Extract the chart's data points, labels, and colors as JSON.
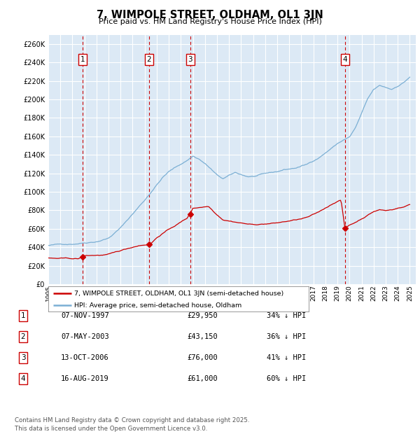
{
  "title": "7, WIMPOLE STREET, OLDHAM, OL1 3JN",
  "subtitle": "Price paid vs. HM Land Registry's House Price Index (HPI)",
  "bg_color": "#dce9f5",
  "grid_color": "#ffffff",
  "hpi_color": "#7bafd4",
  "price_color": "#cc0000",
  "vline_color": "#cc0000",
  "ylim": [
    0,
    270000
  ],
  "yticks": [
    0,
    20000,
    40000,
    60000,
    80000,
    100000,
    120000,
    140000,
    160000,
    180000,
    200000,
    220000,
    240000,
    260000
  ],
  "xlim_start": 1995.0,
  "xlim_end": 2025.5,
  "sales": [
    {
      "num": 1,
      "date_x": 1997.85,
      "price": 29950
    },
    {
      "num": 2,
      "date_x": 2003.35,
      "price": 43150
    },
    {
      "num": 3,
      "date_x": 2006.78,
      "price": 76000
    },
    {
      "num": 4,
      "date_x": 2019.62,
      "price": 61000
    }
  ],
  "legend_label_price": "7, WIMPOLE STREET, OLDHAM, OL1 3JN (semi-detached house)",
  "legend_label_hpi": "HPI: Average price, semi-detached house, Oldham",
  "footer": "Contains HM Land Registry data © Crown copyright and database right 2025.\nThis data is licensed under the Open Government Licence v3.0.",
  "table_rows": [
    [
      "1",
      "07-NOV-1997",
      "£29,950",
      "34% ↓ HPI"
    ],
    [
      "2",
      "07-MAY-2003",
      "£43,150",
      "36% ↓ HPI"
    ],
    [
      "3",
      "13-OCT-2006",
      "£76,000",
      "41% ↓ HPI"
    ],
    [
      "4",
      "16-AUG-2019",
      "£61,000",
      "60% ↓ HPI"
    ]
  ],
  "hpi_anchors": [
    [
      1995.0,
      42000
    ],
    [
      1996.0,
      43000
    ],
    [
      1997.0,
      44000
    ],
    [
      1998.0,
      46000
    ],
    [
      1999.0,
      48000
    ],
    [
      2000.0,
      52000
    ],
    [
      2001.0,
      63000
    ],
    [
      2002.0,
      78000
    ],
    [
      2003.0,
      93000
    ],
    [
      2004.0,
      110000
    ],
    [
      2004.5,
      118000
    ],
    [
      2005.0,
      124000
    ],
    [
      2005.5,
      128000
    ],
    [
      2006.0,
      132000
    ],
    [
      2006.5,
      136000
    ],
    [
      2007.0,
      141000
    ],
    [
      2007.5,
      138000
    ],
    [
      2008.0,
      133000
    ],
    [
      2008.5,
      127000
    ],
    [
      2009.0,
      120000
    ],
    [
      2009.5,
      116000
    ],
    [
      2010.0,
      119000
    ],
    [
      2010.5,
      122000
    ],
    [
      2011.0,
      120000
    ],
    [
      2011.5,
      118000
    ],
    [
      2012.0,
      118000
    ],
    [
      2012.5,
      119000
    ],
    [
      2013.0,
      120000
    ],
    [
      2013.5,
      121000
    ],
    [
      2014.0,
      122000
    ],
    [
      2014.5,
      124000
    ],
    [
      2015.0,
      125000
    ],
    [
      2015.5,
      126000
    ],
    [
      2016.0,
      128000
    ],
    [
      2016.5,
      130000
    ],
    [
      2017.0,
      134000
    ],
    [
      2017.5,
      138000
    ],
    [
      2018.0,
      143000
    ],
    [
      2018.5,
      148000
    ],
    [
      2019.0,
      153000
    ],
    [
      2019.5,
      157000
    ],
    [
      2020.0,
      160000
    ],
    [
      2020.5,
      170000
    ],
    [
      2021.0,
      185000
    ],
    [
      2021.5,
      200000
    ],
    [
      2022.0,
      210000
    ],
    [
      2022.5,
      214000
    ],
    [
      2023.0,
      212000
    ],
    [
      2023.5,
      210000
    ],
    [
      2024.0,
      214000
    ],
    [
      2024.5,
      218000
    ],
    [
      2025.0,
      224000
    ]
  ],
  "price_anchors": [
    [
      1995.0,
      28500
    ],
    [
      1995.5,
      28000
    ],
    [
      1996.0,
      27800
    ],
    [
      1996.5,
      27500
    ],
    [
      1997.0,
      27200
    ],
    [
      1997.5,
      27000
    ],
    [
      1997.85,
      29950
    ],
    [
      1998.0,
      30200
    ],
    [
      1998.5,
      30500
    ],
    [
      1999.0,
      30800
    ],
    [
      1999.5,
      31000
    ],
    [
      2000.0,
      31500
    ],
    [
      2000.5,
      33000
    ],
    [
      2001.0,
      35000
    ],
    [
      2001.5,
      37000
    ],
    [
      2002.0,
      39000
    ],
    [
      2002.5,
      41000
    ],
    [
      2003.0,
      42000
    ],
    [
      2003.35,
      43150
    ],
    [
      2003.5,
      43500
    ],
    [
      2004.0,
      50000
    ],
    [
      2004.5,
      55000
    ],
    [
      2005.0,
      59000
    ],
    [
      2005.5,
      63000
    ],
    [
      2006.0,
      67000
    ],
    [
      2006.5,
      71000
    ],
    [
      2006.78,
      76000
    ],
    [
      2007.0,
      82000
    ],
    [
      2007.5,
      83000
    ],
    [
      2008.0,
      84000
    ],
    [
      2008.3,
      84500
    ],
    [
      2008.5,
      82000
    ],
    [
      2009.0,
      76000
    ],
    [
      2009.5,
      71000
    ],
    [
      2010.0,
      70000
    ],
    [
      2010.5,
      69000
    ],
    [
      2011.0,
      68000
    ],
    [
      2011.5,
      67000
    ],
    [
      2012.0,
      66000
    ],
    [
      2012.5,
      66500
    ],
    [
      2013.0,
      67000
    ],
    [
      2013.5,
      67500
    ],
    [
      2014.0,
      68000
    ],
    [
      2014.5,
      69000
    ],
    [
      2015.0,
      70000
    ],
    [
      2015.5,
      71000
    ],
    [
      2016.0,
      72000
    ],
    [
      2016.5,
      73500
    ],
    [
      2017.0,
      76000
    ],
    [
      2017.5,
      79000
    ],
    [
      2018.0,
      83000
    ],
    [
      2018.5,
      87000
    ],
    [
      2019.0,
      91000
    ],
    [
      2019.3,
      92000
    ],
    [
      2019.62,
      61000
    ],
    [
      2019.8,
      63000
    ],
    [
      2020.0,
      65000
    ],
    [
      2020.5,
      68000
    ],
    [
      2021.0,
      72000
    ],
    [
      2021.5,
      76000
    ],
    [
      2022.0,
      80000
    ],
    [
      2022.5,
      82000
    ],
    [
      2023.0,
      81000
    ],
    [
      2023.5,
      82000
    ],
    [
      2024.0,
      84000
    ],
    [
      2024.5,
      85000
    ],
    [
      2025.0,
      88000
    ]
  ]
}
